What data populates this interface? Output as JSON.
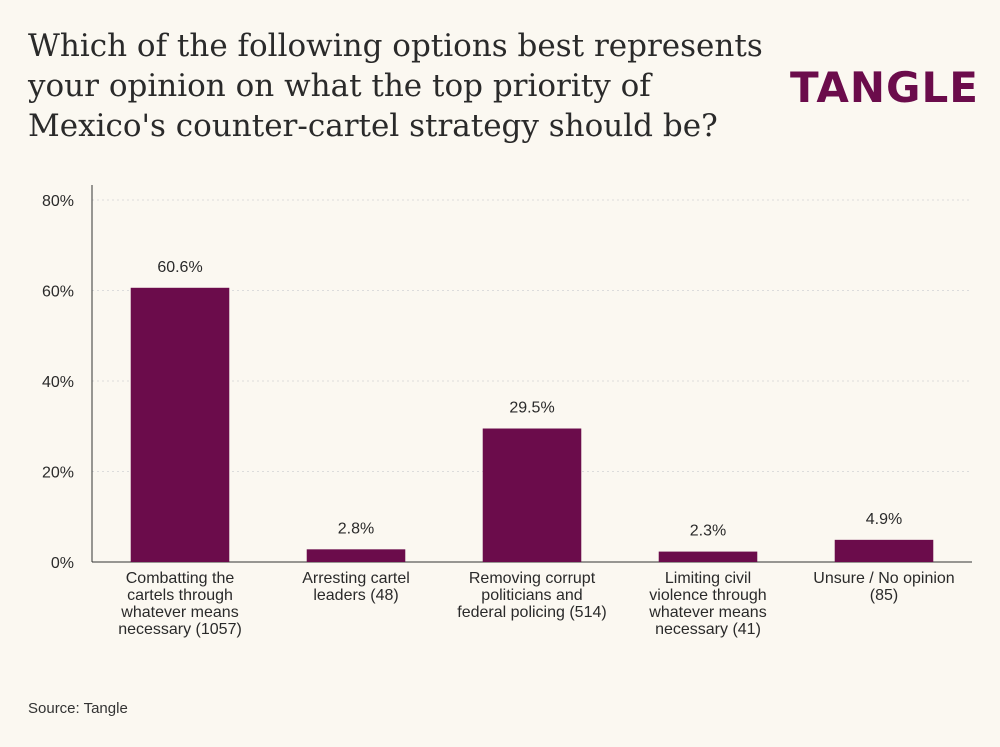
{
  "title": "Which of the following options best represents your opinion on what the top priority of Mexico's counter-cartel strategy should be?",
  "logo_text": "TANGLE",
  "source": "Source: Tangle",
  "colors": {
    "bar": "#6b0c4b",
    "background": "#fbf8f1",
    "axis": "#333333",
    "grid": "#dcdcdc"
  },
  "chart_data": {
    "type": "bar",
    "categories": [
      "Combatting the cartels through whatever means necessary (1057)",
      "Arresting cartel leaders (48)",
      "Removing corrupt politicians and federal policing (514)",
      "Limiting civil violence through whatever means necessary (41)",
      "Unsure / No opinion (85)"
    ],
    "category_lines": [
      [
        "Combatting the",
        "cartels through",
        "whatever means",
        "necessary (1057)"
      ],
      [
        "Arresting cartel",
        "leaders (48)"
      ],
      [
        "Removing corrupt",
        "politicians and",
        "federal policing (514)"
      ],
      [
        "Limiting civil",
        "violence through",
        "whatever means",
        "necessary (41)"
      ],
      [
        "Unsure / No opinion",
        "(85)"
      ]
    ],
    "values": [
      60.6,
      2.8,
      29.5,
      2.3,
      4.9
    ],
    "data_labels": [
      "60.6%",
      "2.8%",
      "29.5%",
      "2.3%",
      "4.9%"
    ],
    "ylim": [
      0,
      80
    ],
    "yticks": [
      0,
      20,
      40,
      60,
      80
    ],
    "ytick_labels": [
      "0%",
      "20%",
      "40%",
      "60%",
      "80%"
    ],
    "grid": true,
    "xlabel": "",
    "ylabel": ""
  }
}
